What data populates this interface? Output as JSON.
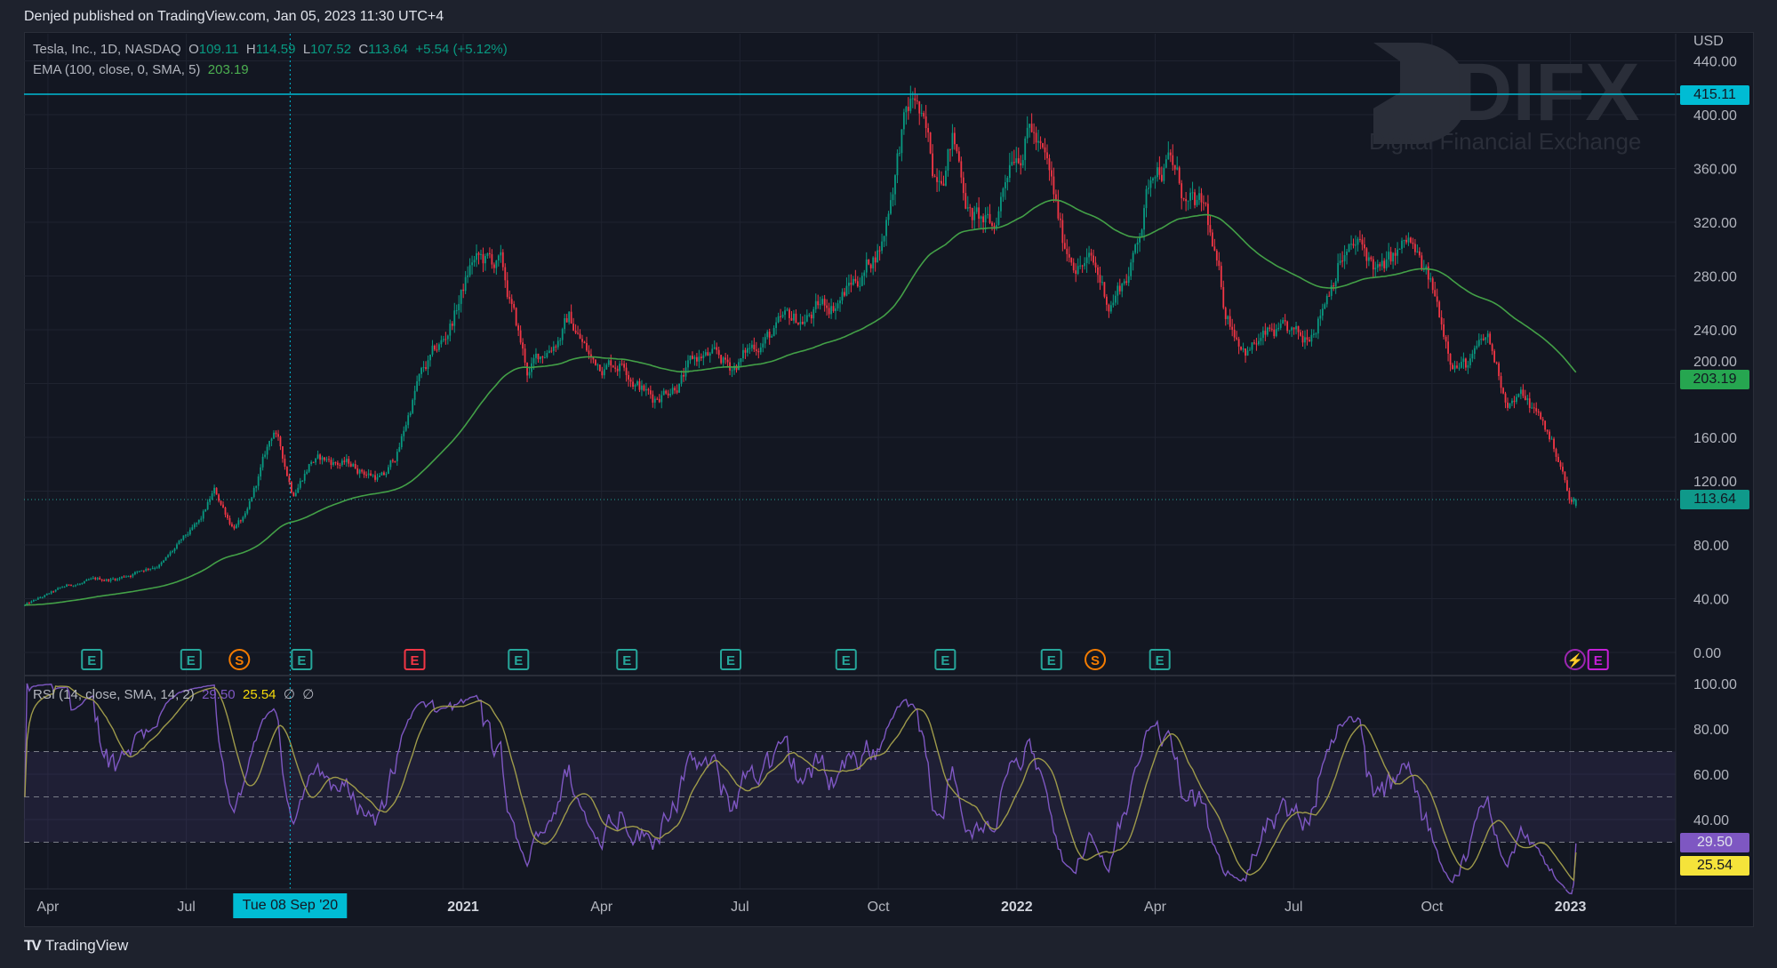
{
  "publish_line": "Denjed published on TradingView.com, Jan 05, 2023 11:30 UTC+4",
  "legend": {
    "symbol": "Tesla, Inc., 1D, NASDAQ",
    "o_label": "O",
    "open": "109.11",
    "h_label": "H",
    "high": "114.59",
    "l_label": "L",
    "low": "107.52",
    "c_label": "C",
    "close": "113.64",
    "change": "+5.54 (+5.12%)",
    "ema_label": "EMA (100, close, 0, SMA, 5)",
    "ema_value": "203.19",
    "rsi_label": "RSI (14, close, SMA, 14, 2)",
    "rsi_value": "29.50",
    "rsi_sma_value": "25.54",
    "na1": "∅",
    "na2": "∅"
  },
  "watermark": {
    "brand": "DIFX",
    "tagline": "Digital Financial Exchange"
  },
  "price_axis": {
    "currency": "USD",
    "ticks": [
      "440.00",
      "400.00",
      "360.00",
      "320.00",
      "280.00",
      "240.00",
      "200.00",
      "160.00",
      "120.00",
      "80.00",
      "40.00",
      "0.00"
    ],
    "tick_values": [
      440,
      400,
      360,
      320,
      280,
      240,
      200,
      160,
      120,
      80,
      40,
      0
    ],
    "high_tag": "415.11",
    "ema_tag": "203.19",
    "last_tag": "113.64"
  },
  "rsi_axis": {
    "ticks": [
      "100.00",
      "80.00",
      "60.00",
      "40.00"
    ],
    "tick_values": [
      100,
      80,
      60,
      40
    ],
    "rsi_tag": "29.50",
    "sma_tag": "25.54"
  },
  "time_axis": {
    "labels": [
      {
        "text": "Apr",
        "bold": false,
        "m": 3
      },
      {
        "text": "Jul",
        "bold": false,
        "m": 6
      },
      {
        "text": "2021",
        "bold": true,
        "m": 12
      },
      {
        "text": "Apr",
        "bold": false,
        "m": 15
      },
      {
        "text": "Jul",
        "bold": false,
        "m": 18
      },
      {
        "text": "Oct",
        "bold": false,
        "m": 21
      },
      {
        "text": "2022",
        "bold": true,
        "m": 24
      },
      {
        "text": "Apr",
        "bold": false,
        "m": 27
      },
      {
        "text": "Jul",
        "bold": false,
        "m": 30
      },
      {
        "text": "Oct",
        "bold": false,
        "m": 33
      },
      {
        "text": "2023",
        "bold": true,
        "m": 36
      }
    ],
    "crosshair_label": "Tue 08 Sep '20",
    "crosshair_m": 8.25
  },
  "events": [
    {
      "type": "E",
      "m": 3.95,
      "color": "#26a69a"
    },
    {
      "type": "E",
      "m": 6.1,
      "color": "#26a69a"
    },
    {
      "type": "S",
      "m": 7.15,
      "color": "#f57c00"
    },
    {
      "type": "E",
      "m": 8.5,
      "color": "#26a69a"
    },
    {
      "type": "E",
      "m": 10.95,
      "color": "#f23645"
    },
    {
      "type": "E",
      "m": 13.2,
      "color": "#26a69a"
    },
    {
      "type": "E",
      "m": 15.55,
      "color": "#26a69a"
    },
    {
      "type": "E",
      "m": 17.8,
      "color": "#26a69a"
    },
    {
      "type": "E",
      "m": 20.3,
      "color": "#26a69a"
    },
    {
      "type": "E",
      "m": 22.45,
      "color": "#26a69a"
    },
    {
      "type": "E",
      "m": 24.75,
      "color": "#26a69a"
    },
    {
      "type": "S",
      "m": 25.7,
      "color": "#f57c00"
    },
    {
      "type": "E",
      "m": 27.1,
      "color": "#26a69a"
    },
    {
      "type": "⚡",
      "m": 36.1,
      "color": "#9c27b0"
    },
    {
      "type": "E",
      "m": 36.6,
      "color": "#c41fd6"
    }
  ],
  "colors": {
    "up": "#089981",
    "down": "#f23645",
    "ema": "#43a047",
    "rsi": "#7e57c2",
    "rsi_sma": "#b5a642",
    "accent": "#00bcd4"
  },
  "footer": {
    "brand": "TradingView"
  },
  "chart_data": {
    "type": "candlestick",
    "title": "Tesla, Inc., 1D, NASDAQ",
    "x_unit": "months since Jan 2020",
    "price_anchors": [
      [
        2.5,
        35
      ],
      [
        3.5,
        50
      ],
      [
        4.5,
        55
      ],
      [
        5.5,
        68
      ],
      [
        6.3,
        95
      ],
      [
        6.6,
        118
      ],
      [
        7.0,
        95
      ],
      [
        7.3,
        100
      ],
      [
        7.9,
        165
      ],
      [
        8.3,
        120
      ],
      [
        8.7,
        145
      ],
      [
        9.5,
        140
      ],
      [
        10.3,
        130
      ],
      [
        10.6,
        150
      ],
      [
        11.0,
        200
      ],
      [
        11.6,
        230
      ],
      [
        12.2,
        290
      ],
      [
        12.8,
        285
      ],
      [
        13.4,
        205
      ],
      [
        13.7,
        220
      ],
      [
        14.3,
        250
      ],
      [
        14.8,
        215
      ],
      [
        15.5,
        220
      ],
      [
        16.1,
        190
      ],
      [
        16.6,
        205
      ],
      [
        17.2,
        220
      ],
      [
        17.8,
        210
      ],
      [
        18.5,
        235
      ],
      [
        19.3,
        245
      ],
      [
        20.0,
        260
      ],
      [
        20.7,
        285
      ],
      [
        21.1,
        310
      ],
      [
        21.5,
        390
      ],
      [
        21.8,
        410
      ],
      [
        22.2,
        350
      ],
      [
        22.6,
        390
      ],
      [
        23.0,
        330
      ],
      [
        23.5,
        310
      ],
      [
        23.9,
        380
      ],
      [
        24.3,
        400
      ],
      [
        24.7,
        350
      ],
      [
        25.0,
        300
      ],
      [
        25.6,
        290
      ],
      [
        26.0,
        260
      ],
      [
        26.5,
        290
      ],
      [
        27.0,
        370
      ],
      [
        27.3,
        370
      ],
      [
        27.7,
        330
      ],
      [
        28.1,
        320
      ],
      [
        28.5,
        250
      ],
      [
        29.0,
        230
      ],
      [
        29.6,
        235
      ],
      [
        30.2,
        225
      ],
      [
        30.6,
        260
      ],
      [
        31.0,
        300
      ],
      [
        31.4,
        300
      ],
      [
        31.9,
        280
      ],
      [
        32.5,
        300
      ],
      [
        33.0,
        265
      ],
      [
        33.4,
        225
      ],
      [
        33.8,
        215
      ],
      [
        34.2,
        230
      ],
      [
        34.6,
        190
      ],
      [
        35.0,
        190
      ],
      [
        35.4,
        170
      ],
      [
        35.8,
        140
      ],
      [
        36.0,
        110
      ],
      [
        36.12,
        113.64
      ]
    ],
    "last": {
      "open": 109.11,
      "high": 114.59,
      "low": 107.52,
      "close": 113.64
    },
    "period_high": 415.11,
    "ema_period": 100,
    "ema_last": 203.19,
    "rsi_period": 14,
    "rsi_last": 29.5,
    "rsi_sma_last": 25.54,
    "rsi_levels": [
      30,
      50,
      70
    ],
    "ylim": [
      0,
      440
    ],
    "rsi_ylim": [
      0,
      100
    ]
  }
}
